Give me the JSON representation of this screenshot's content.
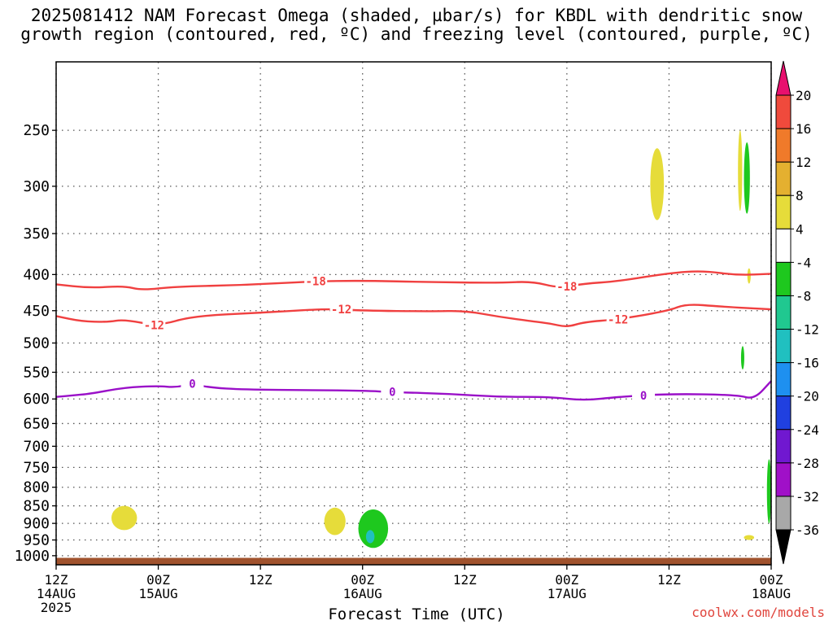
{
  "header": {
    "title_line1": "2025081412 NAM Forecast Omega (shaded, µbar/s) for KBDL with dendritic snow",
    "title_line2": "growth region (contoured, red, ºC) and freezing level (contoured, purple, ºC)"
  },
  "footer": {
    "credit": "coolwx.com/models",
    "xlabel": "Forecast Time (UTC)"
  },
  "chart_data": {
    "type": "heatmap",
    "title": "2025081412 NAM Forecast Omega (shaded, µbar/s) for KBDL with dendritic snow growth region (contoured, red, ºC) and freezing level (contoured, purple, ºC)",
    "xlabel": "Forecast Time (UTC)",
    "ylabel": "",
    "x_range_hours": [
      0,
      84
    ],
    "y_range_hpa": [
      1000,
      200
    ],
    "y_log_scale": true,
    "grid": true,
    "x_ticks": [
      {
        "hour": 0,
        "line1": "12Z",
        "line2": "14AUG",
        "line3": "2025"
      },
      {
        "hour": 12,
        "line1": "00Z",
        "line2": "15AUG",
        "line3": ""
      },
      {
        "hour": 24,
        "line1": "12Z",
        "line2": "",
        "line3": ""
      },
      {
        "hour": 36,
        "line1": "00Z",
        "line2": "16AUG",
        "line3": ""
      },
      {
        "hour": 48,
        "line1": "12Z",
        "line2": "",
        "line3": ""
      },
      {
        "hour": 60,
        "line1": "00Z",
        "line2": "17AUG",
        "line3": ""
      },
      {
        "hour": 72,
        "line1": "12Z",
        "line2": "",
        "line3": ""
      },
      {
        "hour": 84,
        "line1": "00Z",
        "line2": "18AUG",
        "line3": ""
      }
    ],
    "y_ticks": [
      250,
      300,
      350,
      400,
      450,
      500,
      550,
      600,
      650,
      700,
      750,
      800,
      850,
      900,
      950,
      1000
    ],
    "colorbar": {
      "labels": [
        "20",
        "16",
        "12",
        "8",
        "4",
        "-4",
        "-8",
        "-12",
        "-16",
        "-20",
        "-24",
        "-28",
        "-32",
        "-36"
      ],
      "colors": [
        "#e8106e",
        "#f04a3c",
        "#f07a2a",
        "#e4b030",
        "#e6dc3a",
        "#ffffff",
        "#1ec81e",
        "#20c890",
        "#20c0c0",
        "#1e90f0",
        "#2040e0",
        "#7018d0",
        "#a010c8",
        "#a8a8a8",
        "#000000"
      ]
    },
    "series": [
      {
        "name": "-18",
        "color": "#f04040",
        "points": [
          [
            0,
            413
          ],
          [
            4,
            418
          ],
          [
            8,
            415
          ],
          [
            10,
            421
          ],
          [
            14,
            416
          ],
          [
            22,
            414
          ],
          [
            30,
            409
          ],
          [
            36,
            408
          ],
          [
            44,
            410
          ],
          [
            52,
            411
          ],
          [
            56,
            409
          ],
          [
            59,
            418
          ],
          [
            62,
            412
          ],
          [
            66,
            409
          ],
          [
            72,
            398
          ],
          [
            76,
            395
          ],
          [
            80,
            401
          ],
          [
            84,
            399
          ]
        ]
      },
      {
        "name": "-12",
        "color": "#f04040",
        "points": [
          [
            0,
            458
          ],
          [
            3,
            466
          ],
          [
            6,
            467
          ],
          [
            8,
            463
          ],
          [
            12,
            473
          ],
          [
            16,
            458
          ],
          [
            24,
            453
          ],
          [
            32,
            447
          ],
          [
            36,
            450
          ],
          [
            44,
            451
          ],
          [
            48,
            450
          ],
          [
            52,
            459
          ],
          [
            56,
            466
          ],
          [
            58,
            469
          ],
          [
            60,
            475
          ],
          [
            62,
            467
          ],
          [
            66,
            463
          ],
          [
            72,
            450
          ],
          [
            74,
            440
          ],
          [
            78,
            444
          ],
          [
            84,
            448
          ]
        ]
      },
      {
        "name": "0",
        "color": "#9a10c8",
        "points": [
          [
            0,
            596
          ],
          [
            2,
            593
          ],
          [
            4,
            590
          ],
          [
            8,
            578
          ],
          [
            12,
            575
          ],
          [
            14,
            578
          ],
          [
            16,
            571
          ],
          [
            18,
            578
          ],
          [
            22,
            582
          ],
          [
            30,
            583
          ],
          [
            36,
            584
          ],
          [
            40,
            587
          ],
          [
            46,
            590
          ],
          [
            52,
            596
          ],
          [
            58,
            596
          ],
          [
            62,
            603
          ],
          [
            66,
            596
          ],
          [
            72,
            590
          ],
          [
            80,
            592
          ],
          [
            82,
            601
          ],
          [
            84,
            566
          ]
        ]
      }
    ],
    "shaded_regions": [
      {
        "value": "4 to 8",
        "color": "#e6dc3a",
        "x_hours": [
          6.5,
          9.5
        ],
        "p_hpa": [
          850,
          920
        ]
      },
      {
        "value": "4 to 8",
        "color": "#e6dc3a",
        "x_hours": [
          31.5,
          34
        ],
        "p_hpa": [
          855,
          935
        ]
      },
      {
        "value": "-4 to -8",
        "color": "#1ec81e",
        "x_hours": [
          35.5,
          39
        ],
        "p_hpa": [
          860,
          975
        ]
      },
      {
        "value": "-12 to -16",
        "color": "#20c0c0",
        "x_hours": [
          36.4,
          37.4
        ],
        "p_hpa": [
          920,
          960
        ]
      },
      {
        "value": "4 to 8",
        "color": "#e6dc3a",
        "x_hours": [
          69.8,
          71.4
        ],
        "p_hpa": [
          265,
          335
        ]
      },
      {
        "value": "4 to 8",
        "color": "#e6dc3a",
        "x_hours": [
          80.1,
          80.6
        ],
        "p_hpa": [
          250,
          325
        ]
      },
      {
        "value": "-4 to -8",
        "color": "#1ec81e",
        "x_hours": [
          80.8,
          81.5
        ],
        "p_hpa": [
          260,
          328
        ]
      },
      {
        "value": "4 to 8",
        "color": "#e6dc3a",
        "x_hours": [
          81.2,
          81.6
        ],
        "p_hpa": [
          392,
          412
        ]
      },
      {
        "value": "-4 to -8",
        "color": "#1ec81e",
        "x_hours": [
          80.5,
          80.8
        ],
        "p_hpa": [
          505,
          545
        ]
      },
      {
        "value": "4 to 8",
        "color": "#e6dc3a",
        "x_hours": [
          80.8,
          82
        ],
        "p_hpa": [
          935,
          950
        ]
      },
      {
        "value": "-4 to -8",
        "color": "#1ec81e",
        "x_hours": [
          83.5,
          84
        ],
        "p_hpa": [
          730,
          900
        ]
      }
    ],
    "terrain_surface": {
      "color": "#a0522d",
      "top_p_hpa": 1007
    }
  }
}
